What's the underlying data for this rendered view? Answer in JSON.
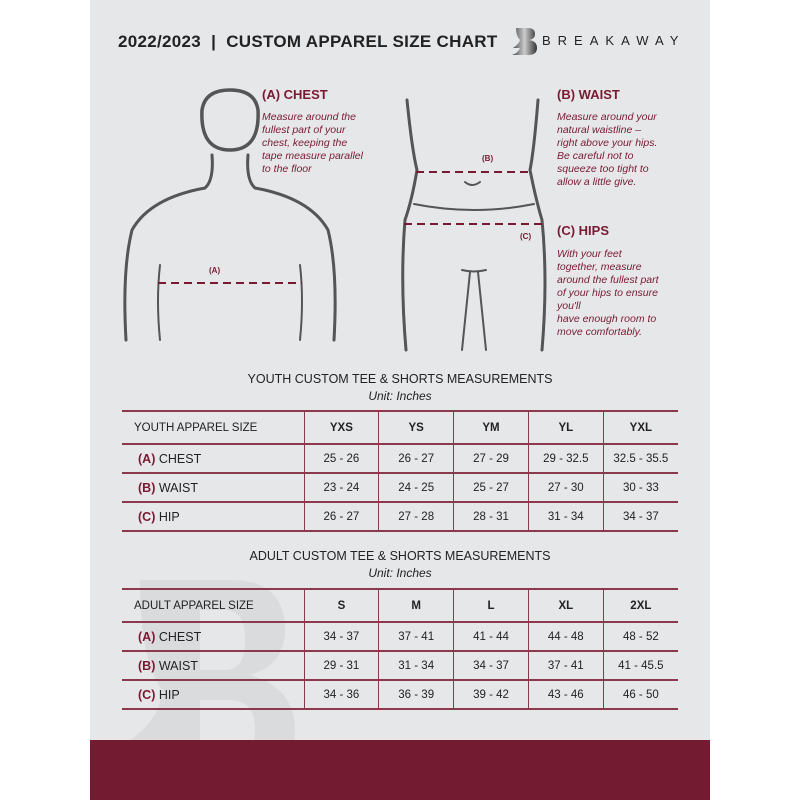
{
  "header": {
    "title": "2022/2023  |  CUSTOM APPAREL SIZE CHART",
    "brand": "BREAKAWAY",
    "logo_letter": "B"
  },
  "measures": {
    "chest": {
      "label": "(A)",
      "title": "(A) CHEST",
      "lines": [
        "Measure around the",
        "fullest part of your",
        "chest, keeping the",
        "tape measure parallel",
        "to the floor"
      ]
    },
    "waist": {
      "label": "(B)",
      "title": "(B) WAIST",
      "lines": [
        "Measure around your",
        "natural waistline –",
        "right above your hips.",
        "Be careful not to",
        "squeeze too tight to",
        "allow a little give."
      ]
    },
    "hips": {
      "label": "(C)",
      "title": "(C) HIPS",
      "lines": [
        "With your feet",
        "together, measure",
        "around the fullest part",
        "of your hips to ensure",
        "you'll",
        "have enough room to",
        "move comfortably."
      ]
    }
  },
  "youth": {
    "title": "YOUTH CUSTOM TEE & SHORTS MEASUREMENTS",
    "unit": "Unit: Inches",
    "header": [
      "YOUTH APPAREL SIZE",
      "YXS",
      "YS",
      "YM",
      "YL",
      "YXL"
    ],
    "rows": [
      {
        "abbr": "(A)",
        "name": "CHEST",
        "values": [
          "25 - 26",
          "26 - 27",
          "27 - 29",
          "29 - 32.5",
          "32.5 - 35.5"
        ]
      },
      {
        "abbr": "(B)",
        "name": "WAIST",
        "values": [
          "23 - 24",
          "24 - 25",
          "25 - 27",
          "27 - 30",
          "30 - 33"
        ]
      },
      {
        "abbr": "(C)",
        "name": "HIP",
        "values": [
          "26 - 27",
          "27 - 28",
          "28 - 31",
          "31 - 34",
          "34 - 37"
        ]
      }
    ]
  },
  "adult": {
    "title": "ADULT CUSTOM TEE & SHORTS MEASUREMENTS",
    "unit": "Unit: Inches",
    "header": [
      "ADULT APPAREL SIZE",
      "S",
      "M",
      "L",
      "XL",
      "2XL"
    ],
    "rows": [
      {
        "abbr": "(A)",
        "name": "CHEST",
        "values": [
          "34 - 37",
          "37 - 41",
          "41 - 44",
          "44 - 48",
          "48 - 52"
        ]
      },
      {
        "abbr": "(B)",
        "name": "WAIST",
        "values": [
          "29 - 31",
          "31 - 34",
          "34 - 37",
          "37 - 41",
          "41 - 45.5"
        ]
      },
      {
        "abbr": "(C)",
        "name": "HIP",
        "values": [
          "34 - 36",
          "36 - 39",
          "39 - 42",
          "43 - 46",
          "46 - 50"
        ]
      }
    ]
  },
  "colors": {
    "accent": "#7a1a32",
    "band": "#731b30",
    "background": "#e6e7e9"
  }
}
